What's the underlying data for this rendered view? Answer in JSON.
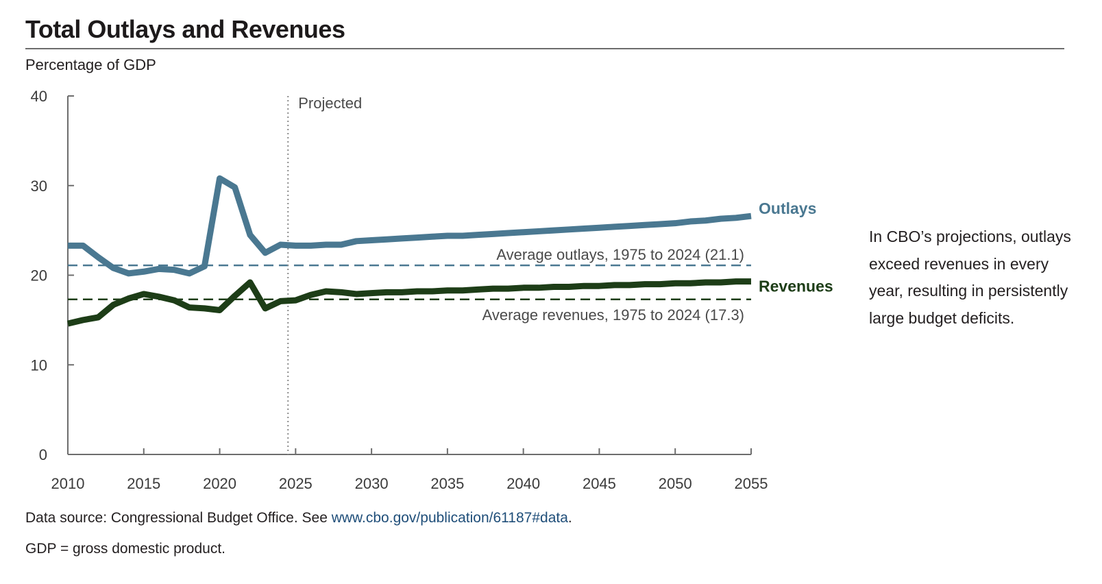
{
  "header": {
    "title": "Total Outlays and Revenues",
    "subtitle": "Percentage of GDP"
  },
  "side_note": "In CBO’s projections, outlays exceed revenues in every year, resulting in persistently large budget deficits.",
  "footer": {
    "source_prefix": "Data source: Congressional Budget Office. See ",
    "source_link": "www.cbo.gov/publication/61187#data",
    "source_suffix": ".",
    "note": "GDP = gross domestic product."
  },
  "colors": {
    "outlays": "#4a7891",
    "revenues": "#1d3d17",
    "axis": "#6d6d6d",
    "projected_line": "#8a8a8a"
  },
  "chart_data": {
    "type": "line",
    "title": "Total Outlays and Revenues",
    "ylabel": "Percentage of GDP",
    "xlabel": "",
    "xlim": [
      2010,
      2055
    ],
    "ylim": [
      0,
      40
    ],
    "x_ticks": [
      2010,
      2015,
      2020,
      2025,
      2030,
      2035,
      2040,
      2045,
      2050,
      2055
    ],
    "y_ticks": [
      0,
      10,
      20,
      30,
      40
    ],
    "grid": false,
    "projected_start": 2024.5,
    "projected_label": "Projected",
    "x": [
      2010,
      2011,
      2012,
      2013,
      2014,
      2015,
      2016,
      2017,
      2018,
      2019,
      2020,
      2021,
      2022,
      2023,
      2024,
      2025,
      2026,
      2027,
      2028,
      2029,
      2030,
      2031,
      2032,
      2033,
      2034,
      2035,
      2036,
      2037,
      2038,
      2039,
      2040,
      2041,
      2042,
      2043,
      2044,
      2045,
      2046,
      2047,
      2048,
      2049,
      2050,
      2051,
      2052,
      2053,
      2054,
      2055
    ],
    "series": [
      {
        "name": "Outlays",
        "values": [
          23.3,
          23.3,
          22.0,
          20.8,
          20.2,
          20.4,
          20.7,
          20.6,
          20.2,
          21.0,
          30.8,
          29.8,
          24.5,
          22.5,
          23.4,
          23.3,
          23.3,
          23.4,
          23.4,
          23.8,
          23.9,
          24.0,
          24.1,
          24.2,
          24.3,
          24.4,
          24.4,
          24.5,
          24.6,
          24.7,
          24.8,
          24.9,
          25.0,
          25.1,
          25.2,
          25.3,
          25.4,
          25.5,
          25.6,
          25.7,
          25.8,
          26.0,
          26.1,
          26.3,
          26.4,
          26.6
        ]
      },
      {
        "name": "Revenues",
        "values": [
          14.6,
          15.0,
          15.3,
          16.7,
          17.4,
          17.9,
          17.6,
          17.2,
          16.4,
          16.3,
          16.1,
          17.7,
          19.2,
          16.3,
          17.1,
          17.2,
          17.8,
          18.2,
          18.1,
          17.9,
          18.0,
          18.1,
          18.1,
          18.2,
          18.2,
          18.3,
          18.3,
          18.4,
          18.5,
          18.5,
          18.6,
          18.6,
          18.7,
          18.7,
          18.8,
          18.8,
          18.9,
          18.9,
          19.0,
          19.0,
          19.1,
          19.1,
          19.2,
          19.2,
          19.3,
          19.3
        ]
      }
    ],
    "reference_lines": [
      {
        "name": "Average outlays",
        "value": 21.1,
        "label": "Average outlays, 1975 to 2024 (21.1)"
      },
      {
        "name": "Average revenues",
        "value": 17.3,
        "label": "Average revenues, 1975 to 2024 (17.3)"
      }
    ],
    "legend": "inline-right"
  }
}
